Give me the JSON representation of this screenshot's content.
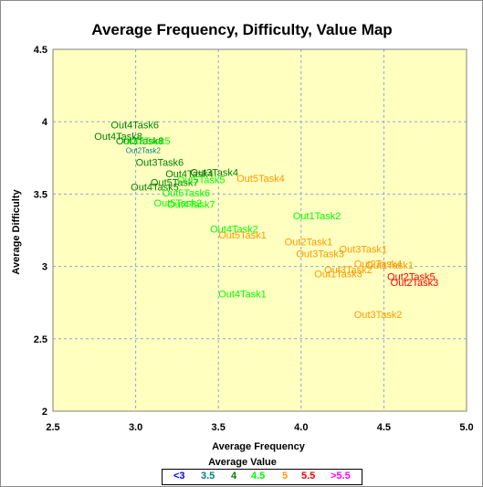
{
  "chart_data": {
    "type": "scatter",
    "title": "Average Frequency, Difficulty, Value Map",
    "xlabel": "Average Frequency",
    "ylabel": "Average Difficulty",
    "xlim": [
      2.5,
      5
    ],
    "ylim": [
      2,
      4.5
    ],
    "x_ticks": [
      "2.5",
      "3.0",
      "3.5",
      "4.0",
      "4.5",
      "5.0"
    ],
    "y_ticks": [
      "2",
      "2.5",
      "3",
      "3.5",
      "4",
      "4.5"
    ],
    "grid": true,
    "background": "#ffffc0",
    "legend": {
      "title": "Average Value",
      "placement": "bottom",
      "entries": [
        {
          "label": "<3",
          "color": "#0000ff"
        },
        {
          "label": "3.5",
          "color": "#008080"
        },
        {
          "label": "4",
          "color": "#008000"
        },
        {
          "label": "4.5",
          "color": "#00ff00"
        },
        {
          "label": "5",
          "color": "#ff9900"
        },
        {
          "label": "5.5",
          "color": "#ff0000"
        },
        {
          "label": ">5.5",
          "color": "#ff00ff"
        }
      ]
    },
    "points": [
      {
        "label": "Out4Task6",
        "x": 2.85,
        "y": 3.98,
        "color": "#008000"
      },
      {
        "label": "Out4Task8",
        "x": 2.75,
        "y": 3.9,
        "color": "#008000"
      },
      {
        "label": "Out3Task8",
        "x": 2.88,
        "y": 3.87,
        "color": "#008000"
      },
      {
        "label": "Out3Task5",
        "x": 2.92,
        "y": 3.87,
        "color": "#00ff00"
      },
      {
        "label": "Out2Task2",
        "x": 2.94,
        "y": 3.81,
        "color": "#008080",
        "small": true
      },
      {
        "label": "Out3Task6",
        "x": 3.0,
        "y": 3.72,
        "color": "#008000"
      },
      {
        "label": "Out3Task4",
        "x": 3.33,
        "y": 3.65,
        "color": "#008000"
      },
      {
        "label": "Out4Task4",
        "x": 3.18,
        "y": 3.64,
        "color": "#008000"
      },
      {
        "label": "Out5Task4",
        "x": 3.61,
        "y": 3.61,
        "color": "#ff9900"
      },
      {
        "label": "Out5Task7",
        "x": 3.09,
        "y": 3.58,
        "color": "#008000"
      },
      {
        "label": "Out5Task5",
        "x": 3.25,
        "y": 3.6,
        "color": "#00ff00"
      },
      {
        "label": "Out4Task5",
        "x": 2.97,
        "y": 3.55,
        "color": "#008000"
      },
      {
        "label": "Out5Task6",
        "x": 3.16,
        "y": 3.51,
        "color": "#00ff00"
      },
      {
        "label": "Out5Task2",
        "x": 3.11,
        "y": 3.44,
        "color": "#00ff00"
      },
      {
        "label": "Out4Task7",
        "x": 3.19,
        "y": 3.43,
        "color": "#00ff00"
      },
      {
        "label": "Out1Task2",
        "x": 3.95,
        "y": 3.35,
        "color": "#00ff00"
      },
      {
        "label": "Out4Task2",
        "x": 3.45,
        "y": 3.26,
        "color": "#00ff00"
      },
      {
        "label": "Out5Task1",
        "x": 3.5,
        "y": 3.22,
        "color": "#ff9900"
      },
      {
        "label": "Out2Task1",
        "x": 3.9,
        "y": 3.17,
        "color": "#ff9900"
      },
      {
        "label": "Out3Task1",
        "x": 4.23,
        "y": 3.12,
        "color": "#ff9900"
      },
      {
        "label": "Out3Task3",
        "x": 3.97,
        "y": 3.09,
        "color": "#ff9900"
      },
      {
        "label": "Out2Task4",
        "x": 4.32,
        "y": 3.02,
        "color": "#ff9900"
      },
      {
        "label": "Out1Task1",
        "x": 4.39,
        "y": 3.01,
        "color": "#ff9900"
      },
      {
        "label": "Out3Task2",
        "x": 4.14,
        "y": 2.98,
        "color": "#ff9900"
      },
      {
        "label": "Out1Task3",
        "x": 4.08,
        "y": 2.95,
        "color": "#ff9900"
      },
      {
        "label": "Out2Task5",
        "x": 4.52,
        "y": 2.93,
        "color": "#ff0000"
      },
      {
        "label": "Out2Task3",
        "x": 4.54,
        "y": 2.89,
        "color": "#ff0000"
      },
      {
        "label": "Out4Task1",
        "x": 3.5,
        "y": 2.81,
        "color": "#00ff00"
      },
      {
        "label": "Out3Task2",
        "x": 4.32,
        "y": 2.67,
        "color": "#ff9900"
      }
    ]
  }
}
